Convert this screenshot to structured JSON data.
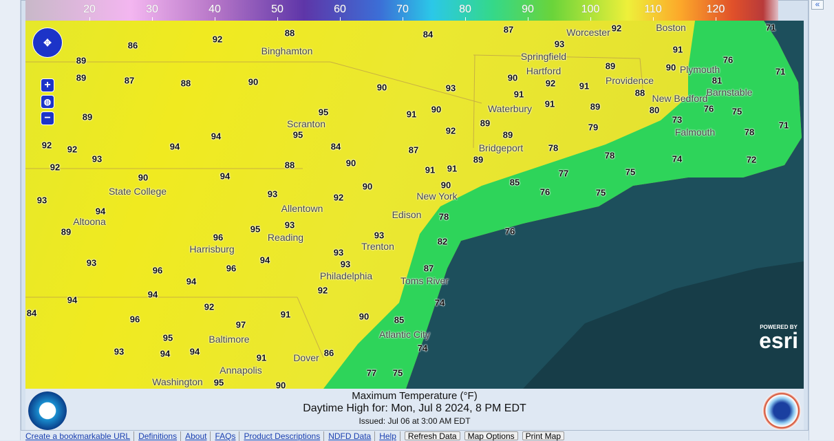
{
  "legend": {
    "ticks": [
      "20",
      "30",
      "40",
      "50",
      "60",
      "70",
      "80",
      "90",
      "100",
      "110",
      "120"
    ],
    "unit": "°F"
  },
  "map": {
    "temperatures": [
      "88",
      "84",
      "87",
      "92",
      "93",
      "92",
      "86",
      "89",
      "89",
      "87",
      "88",
      "90",
      "90",
      "93",
      "90",
      "92",
      "91",
      "89",
      "91",
      "90",
      "76",
      "71",
      "71",
      "81",
      "88",
      "89",
      "91",
      "91",
      "89",
      "91",
      "90",
      "89",
      "80",
      "76",
      "75",
      "73",
      "79",
      "78",
      "71",
      "92",
      "92",
      "93",
      "94",
      "94",
      "95",
      "95",
      "84",
      "92",
      "87",
      "89",
      "78",
      "78",
      "74",
      "72",
      "92",
      "90",
      "94",
      "88",
      "90",
      "91",
      "91",
      "89",
      "85",
      "77",
      "75",
      "93",
      "93",
      "92",
      "90",
      "90",
      "76",
      "75",
      "94",
      "89",
      "96",
      "95",
      "93",
      "93",
      "78",
      "82",
      "76",
      "93",
      "96",
      "96",
      "94",
      "93",
      "93",
      "87",
      "94",
      "92",
      "94",
      "94",
      "84",
      "92",
      "91",
      "74",
      "96",
      "90",
      "85",
      "95",
      "97",
      "74",
      "93",
      "94",
      "94",
      "86",
      "91",
      "77",
      "75",
      "95",
      "90"
    ],
    "cities": [
      "Binghamton",
      "Worcester",
      "Boston",
      "Springfield",
      "Plymouth",
      "Providence",
      "Barnstable",
      "Hartford",
      "Waterbury",
      "New Bedford",
      "Falmouth",
      "Scranton",
      "Bridgeport",
      "State College",
      "New York",
      "Allentown",
      "Edison",
      "Altoona",
      "Reading",
      "Harrisburg",
      "Trenton",
      "Philadelphia",
      "Toms River",
      "Atlantic City",
      "Baltimore",
      "Dover",
      "Annapolis",
      "Washington"
    ],
    "colors": {
      "land": "#e8e82c",
      "coast": "#2ed45a",
      "ocean": "#1d4f5c"
    },
    "attribution": {
      "powered": "POWERED BY",
      "brand": "esri"
    }
  },
  "caption": {
    "title": "Maximum Temperature (°F)",
    "valid": "Daytime High for: Mon, Jul  8 2024,   8 PM EDT",
    "issued": "Issued: Jul 06 at 3:00 AM EDT"
  },
  "toolbar": {
    "links": [
      "Create a bookmarkable URL",
      "Definitions",
      "About",
      "FAQs",
      "Product Descriptions",
      "NDFD Data",
      "Help"
    ],
    "buttons": [
      "Refresh Data",
      "Map Options",
      "Print Map"
    ]
  },
  "logos": {
    "left": "NOAA",
    "right": "National Weather Service"
  }
}
